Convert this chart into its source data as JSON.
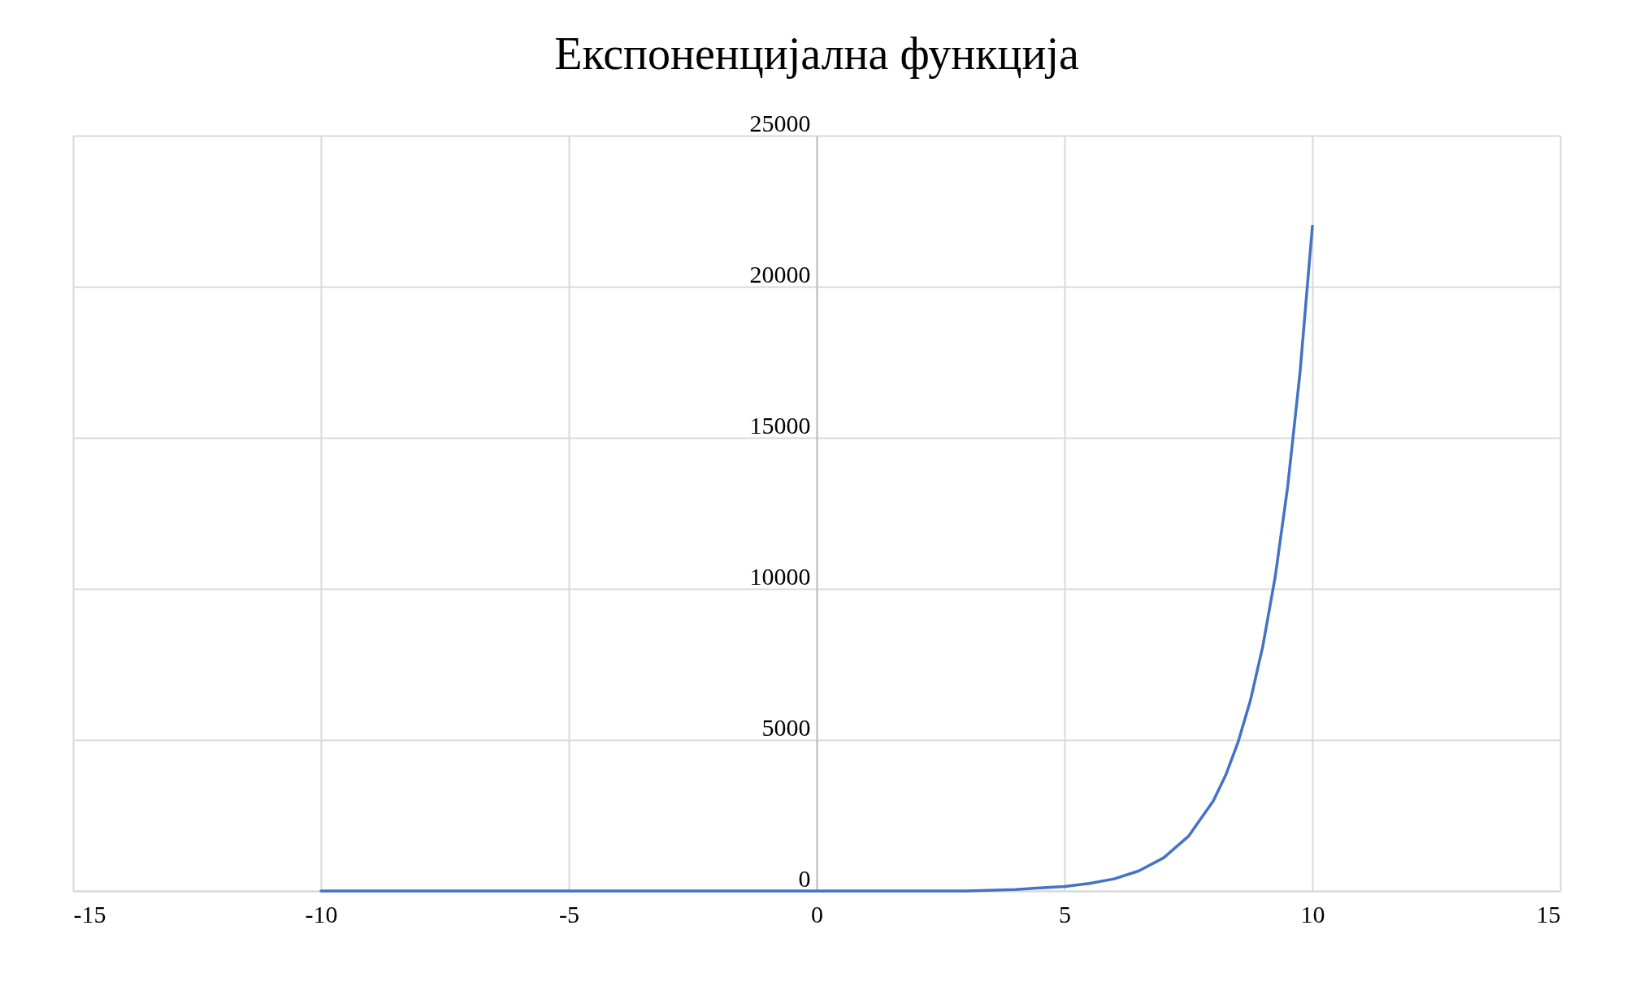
{
  "chart_data": {
    "type": "line",
    "title": "Експоненцијална функција",
    "x": [
      -10,
      -9,
      -8,
      -7,
      -6,
      -5,
      -4,
      -3,
      -2,
      -1,
      0,
      1,
      2,
      3,
      4,
      4.5,
      5,
      5.5,
      6,
      6.5,
      7,
      7.5,
      8,
      8.25,
      8.5,
      8.75,
      9,
      9.25,
      9.5,
      9.75,
      10
    ],
    "values": [
      0,
      0,
      0,
      0,
      0,
      0,
      0,
      0,
      0,
      0,
      0,
      0,
      0,
      0,
      50,
      100,
      150,
      250,
      400,
      665,
      1100,
      1810,
      2980,
      3830,
      4920,
      6310,
      8100,
      10400,
      13360,
      17150,
      22000
    ],
    "color": "#4472c4",
    "xlim": [
      -15,
      15
    ],
    "xticks": [
      -15,
      -10,
      -5,
      0,
      5,
      10,
      15
    ],
    "ylim": [
      0,
      25000
    ],
    "yticks": [
      0,
      5000,
      10000,
      15000,
      20000,
      25000
    ],
    "grid": true
  }
}
